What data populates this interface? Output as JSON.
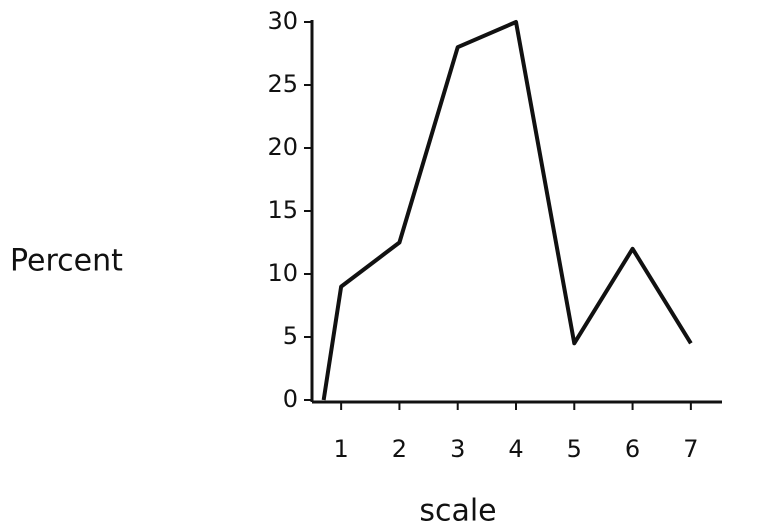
{
  "chart_data": {
    "type": "line",
    "x_label": "scale",
    "y_label": "Percent",
    "x": [
      0.7,
      1,
      2,
      3,
      4,
      5,
      6,
      7
    ],
    "values": [
      0,
      9,
      12.5,
      28,
      30,
      4.5,
      12,
      4.5
    ],
    "color": "#111111",
    "xlim": [
      0.5,
      7.5
    ],
    "xticks": [
      1,
      2,
      3,
      4,
      5,
      6,
      7
    ],
    "ylim": [
      0,
      30
    ],
    "yticks": [
      0,
      5,
      10,
      15,
      20,
      25,
      30
    ]
  }
}
